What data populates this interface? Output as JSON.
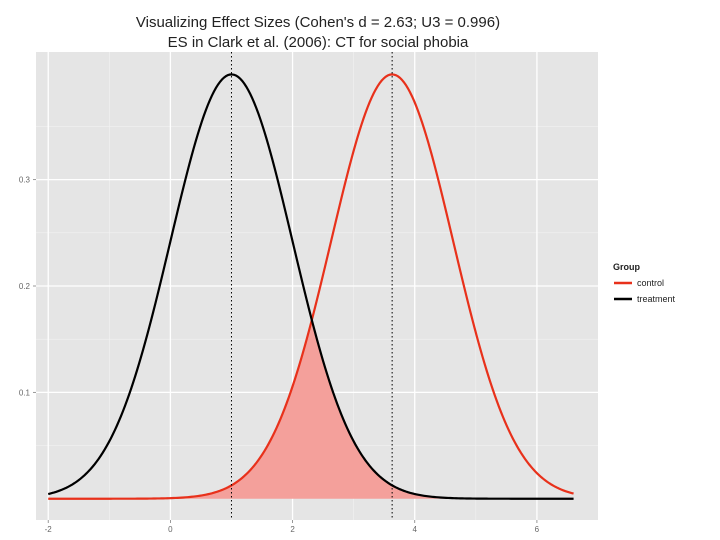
{
  "chart_data": {
    "type": "area",
    "title": "Visualizing Effect Sizes (Cohen's d = 2.63; U3 = 0.996)",
    "subtitle": "ES in Clark et al. (2006): CT for social phobia",
    "xlabel": "",
    "ylabel": "",
    "xlim": [
      -2.2,
      7.0
    ],
    "ylim": [
      -0.02,
      0.42
    ],
    "x_ticks": [
      -2,
      0,
      2,
      4,
      6
    ],
    "x_tick_labels": [
      "-2",
      "0",
      "2",
      "4",
      "6"
    ],
    "y_ticks": [
      0.1,
      0.2,
      0.3
    ],
    "y_tick_labels": [
      "0.1",
      "0.2",
      "0.3"
    ],
    "grid": true,
    "background_color": "#e5e5e5",
    "legend": {
      "title": "Group",
      "position": "right",
      "entries": [
        {
          "label": "control",
          "color": "#e8311b"
        },
        {
          "label": "treatment",
          "color": "#000000"
        }
      ]
    },
    "series": [
      {
        "name": "control",
        "distribution": "normal",
        "mean": 3.63,
        "sd": 1.0,
        "x_range": [
          -2,
          6.6
        ],
        "color": "#e8311b"
      },
      {
        "name": "treatment",
        "distribution": "normal",
        "mean": 1.0,
        "sd": 1.0,
        "x_range": [
          -2,
          6.6
        ],
        "color": "#000000"
      }
    ],
    "reference_lines": [
      {
        "axis": "x",
        "value": 1.0,
        "style": "dotted",
        "color": "#000000"
      },
      {
        "axis": "x",
        "value": 3.63,
        "style": "dotted",
        "color": "#000000"
      }
    ],
    "shaded_overlap": {
      "color": "#f4a09b",
      "between": [
        "control",
        "treatment"
      ],
      "x_range": [
        -2,
        6.6
      ]
    }
  }
}
